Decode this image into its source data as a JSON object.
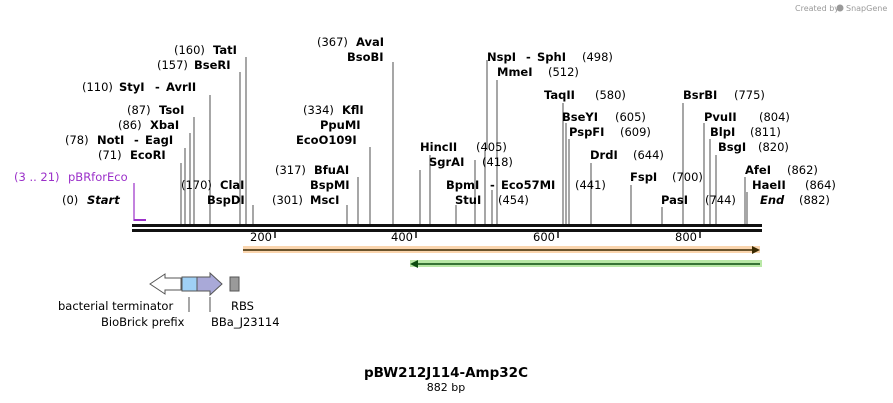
{
  "credit": {
    "text": "Created by",
    "brand": "SnapGene"
  },
  "title": "pBW212J114-Amp32C",
  "subtitle": "882 bp",
  "sequence_length": 882,
  "colors": {
    "primer": "#9b30c9",
    "orange_feature": "#f6b26b",
    "green_feature": "#8ad96a",
    "terminator": "#ffffff",
    "biobrick_prefix": "#9fd0f5",
    "promoter": "#a9a9d8",
    "rbs": "#9a9a9a"
  },
  "primer": {
    "range": "(3 .. 21)",
    "name": "pBRforEco"
  },
  "start": {
    "pos": "(0)",
    "name": "Start"
  },
  "end": {
    "name": "End",
    "pos": "(882)"
  },
  "enzymes": [
    {
      "name": "TatI",
      "pos": "(160)"
    },
    {
      "name": "BseRI",
      "pos": "(157)"
    },
    {
      "name": "StyI",
      "name2": "AvrII",
      "pos": "(110)"
    },
    {
      "name": "TsoI",
      "pos": "(87)"
    },
    {
      "name": "XbaI",
      "pos": "(86)"
    },
    {
      "name": "NotI",
      "name2": "EagI",
      "pos": "(78)"
    },
    {
      "name": "EcoRI",
      "pos": "(71)"
    },
    {
      "name": "ClaI",
      "pos": "(170)"
    },
    {
      "name": "BspDI",
      "pos": ""
    },
    {
      "name": "AvaI",
      "pos": "(367)"
    },
    {
      "name": "BsoBI",
      "pos": ""
    },
    {
      "name": "KflI",
      "pos": "(334)"
    },
    {
      "name": "PpuMI",
      "pos": ""
    },
    {
      "name": "EcoO109I",
      "pos": ""
    },
    {
      "name": "BfuAI",
      "pos": "(317)"
    },
    {
      "name": "BspMI",
      "pos": ""
    },
    {
      "name": "MscI",
      "pos": "(301)"
    },
    {
      "name": "NspI",
      "name2": "SphI",
      "pos": "(498)"
    },
    {
      "name": "MmeI",
      "pos": "(512)"
    },
    {
      "name": "HincII",
      "pos": "(405)"
    },
    {
      "name": "SgrAI",
      "pos": "(418)"
    },
    {
      "name": "BpmI",
      "name2": "Eco57MI",
      "pos": "(441)"
    },
    {
      "name": "StuI",
      "pos": "(454)"
    },
    {
      "name": "TaqII",
      "pos": "(580)"
    },
    {
      "name": "BseYI",
      "pos": "(605)"
    },
    {
      "name": "PspFI",
      "pos": "(609)"
    },
    {
      "name": "DrdI",
      "pos": "(644)"
    },
    {
      "name": "FspI",
      "pos": "(700)"
    },
    {
      "name": "PasI",
      "pos": "(744)"
    },
    {
      "name": "BsrBI",
      "pos": "(775)"
    },
    {
      "name": "PvuII",
      "pos": "(804)"
    },
    {
      "name": "BlpI",
      "pos": "(811)"
    },
    {
      "name": "BsgI",
      "pos": "(820)"
    },
    {
      "name": "AfeI",
      "pos": "(862)"
    },
    {
      "name": "HaeII",
      "pos": "(864)"
    }
  ],
  "ruler_ticks": [
    "200",
    "400",
    "600",
    "800"
  ],
  "features": {
    "bacterial_terminator": "bacterial terminator",
    "biobrick_prefix": "BioBrick prefix",
    "promoter": "BBa_J23114",
    "rbs": "RBS"
  }
}
